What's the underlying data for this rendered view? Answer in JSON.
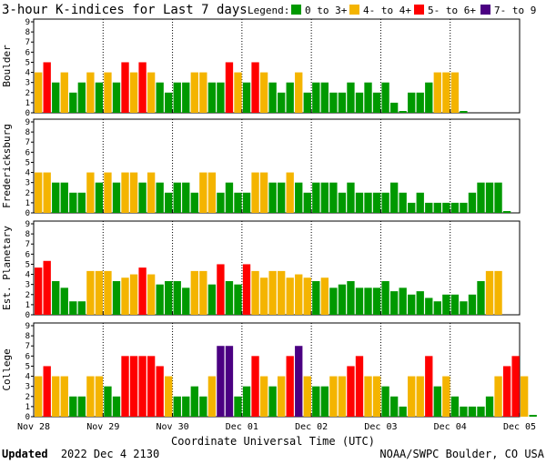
{
  "title": "3-hour K-indices for Last 7 days",
  "legend": {
    "label": "Legend:",
    "items": [
      {
        "label": "0 to 3+",
        "color": "#009900"
      },
      {
        "label": "4- to 4+",
        "color": "#f4b400"
      },
      {
        "label": "5- to 6+",
        "color": "#ff0000"
      },
      {
        "label": "7- to 9",
        "color": "#4b0082"
      }
    ]
  },
  "x_axis_label": "Coordinate Universal Time (UTC)",
  "footer": {
    "updated_label": "Updated",
    "updated_value": "2022 Dec  4 2130",
    "source": "NOAA/SWPC Boulder, CO USA"
  },
  "chart_data": [
    {
      "type": "bar",
      "name": "Boulder",
      "x_labels": [
        "Nov 28",
        "Nov 29",
        "Nov 30",
        "Dec 01",
        "Dec 02",
        "Dec 03",
        "Dec 04",
        "Dec 05"
      ],
      "yticks": [
        0,
        1,
        2,
        3,
        4,
        5,
        6,
        7,
        8,
        9
      ],
      "ylim": [
        0,
        9
      ],
      "values": [
        4,
        5,
        3,
        4,
        2,
        3,
        4,
        3,
        4,
        3,
        5,
        4,
        5,
        4,
        3,
        2,
        3,
        3,
        4,
        4,
        3,
        3,
        5,
        4,
        3,
        5,
        4,
        3,
        2,
        3,
        4,
        2,
        3,
        3,
        2,
        2,
        3,
        2,
        3,
        2,
        3,
        1,
        0,
        2,
        2,
        3,
        4,
        4,
        4,
        0
      ]
    },
    {
      "type": "bar",
      "name": "Fredericksburg",
      "x_labels": [
        "Nov 28",
        "Nov 29",
        "Nov 30",
        "Dec 01",
        "Dec 02",
        "Dec 03",
        "Dec 04",
        "Dec 05"
      ],
      "yticks": [
        0,
        1,
        2,
        3,
        4,
        5,
        6,
        7,
        8,
        9
      ],
      "ylim": [
        0,
        9
      ],
      "values": [
        4,
        4,
        3,
        3,
        2,
        2,
        4,
        3,
        4,
        3,
        4,
        4,
        3,
        4,
        3,
        2,
        3,
        3,
        2,
        4,
        4,
        2,
        3,
        2,
        2,
        4,
        4,
        3,
        3,
        4,
        3,
        2,
        3,
        3,
        3,
        2,
        3,
        2,
        2,
        2,
        2,
        3,
        2,
        1,
        2,
        1,
        1,
        1,
        1,
        1,
        2,
        3,
        3,
        3,
        0
      ]
    },
    {
      "type": "bar",
      "name": "Est. Planetary",
      "x_labels": [
        "Nov 28",
        "Nov 29",
        "Nov 30",
        "Dec 01",
        "Dec 02",
        "Dec 03",
        "Dec 04",
        "Dec 05"
      ],
      "yticks": [
        0,
        1,
        2,
        3,
        4,
        5,
        6,
        7,
        8,
        9
      ],
      "ylim": [
        0,
        9
      ],
      "values": [
        4.67,
        5.33,
        3.33,
        2.67,
        1.33,
        1.33,
        4.33,
        4.33,
        4.33,
        3.33,
        3.67,
        4,
        4.67,
        4,
        3,
        3.33,
        3.33,
        2.67,
        4.33,
        4.33,
        3,
        5,
        3.33,
        3,
        5,
        4.33,
        3.67,
        4.33,
        4.33,
        3.67,
        4,
        3.67,
        3.33,
        3.67,
        2.67,
        3,
        3.33,
        2.67,
        2.67,
        2.67,
        3.33,
        2.33,
        2.67,
        2,
        2.33,
        1.67,
        1.33,
        2,
        2,
        1.33,
        2,
        3.33,
        4.33,
        4.33
      ]
    },
    {
      "type": "bar",
      "name": "College",
      "x_labels": [
        "Nov 28",
        "Nov 29",
        "Nov 30",
        "Dec 01",
        "Dec 02",
        "Dec 03",
        "Dec 04",
        "Dec 05"
      ],
      "yticks": [
        0,
        1,
        2,
        3,
        4,
        5,
        6,
        7,
        8,
        9
      ],
      "ylim": [
        0,
        9
      ],
      "values": [
        4,
        5,
        4,
        4,
        2,
        2,
        4,
        4,
        3,
        2,
        6,
        6,
        6,
        6,
        5,
        4,
        2,
        2,
        3,
        2,
        4,
        7,
        7,
        2,
        3,
        6,
        4,
        3,
        4,
        6,
        7,
        4,
        3,
        3,
        4,
        4,
        5,
        6,
        4,
        4,
        3,
        2,
        1,
        4,
        4,
        6,
        3,
        4,
        2,
        1,
        1,
        1,
        2,
        4,
        5,
        6,
        4,
        0
      ]
    }
  ]
}
